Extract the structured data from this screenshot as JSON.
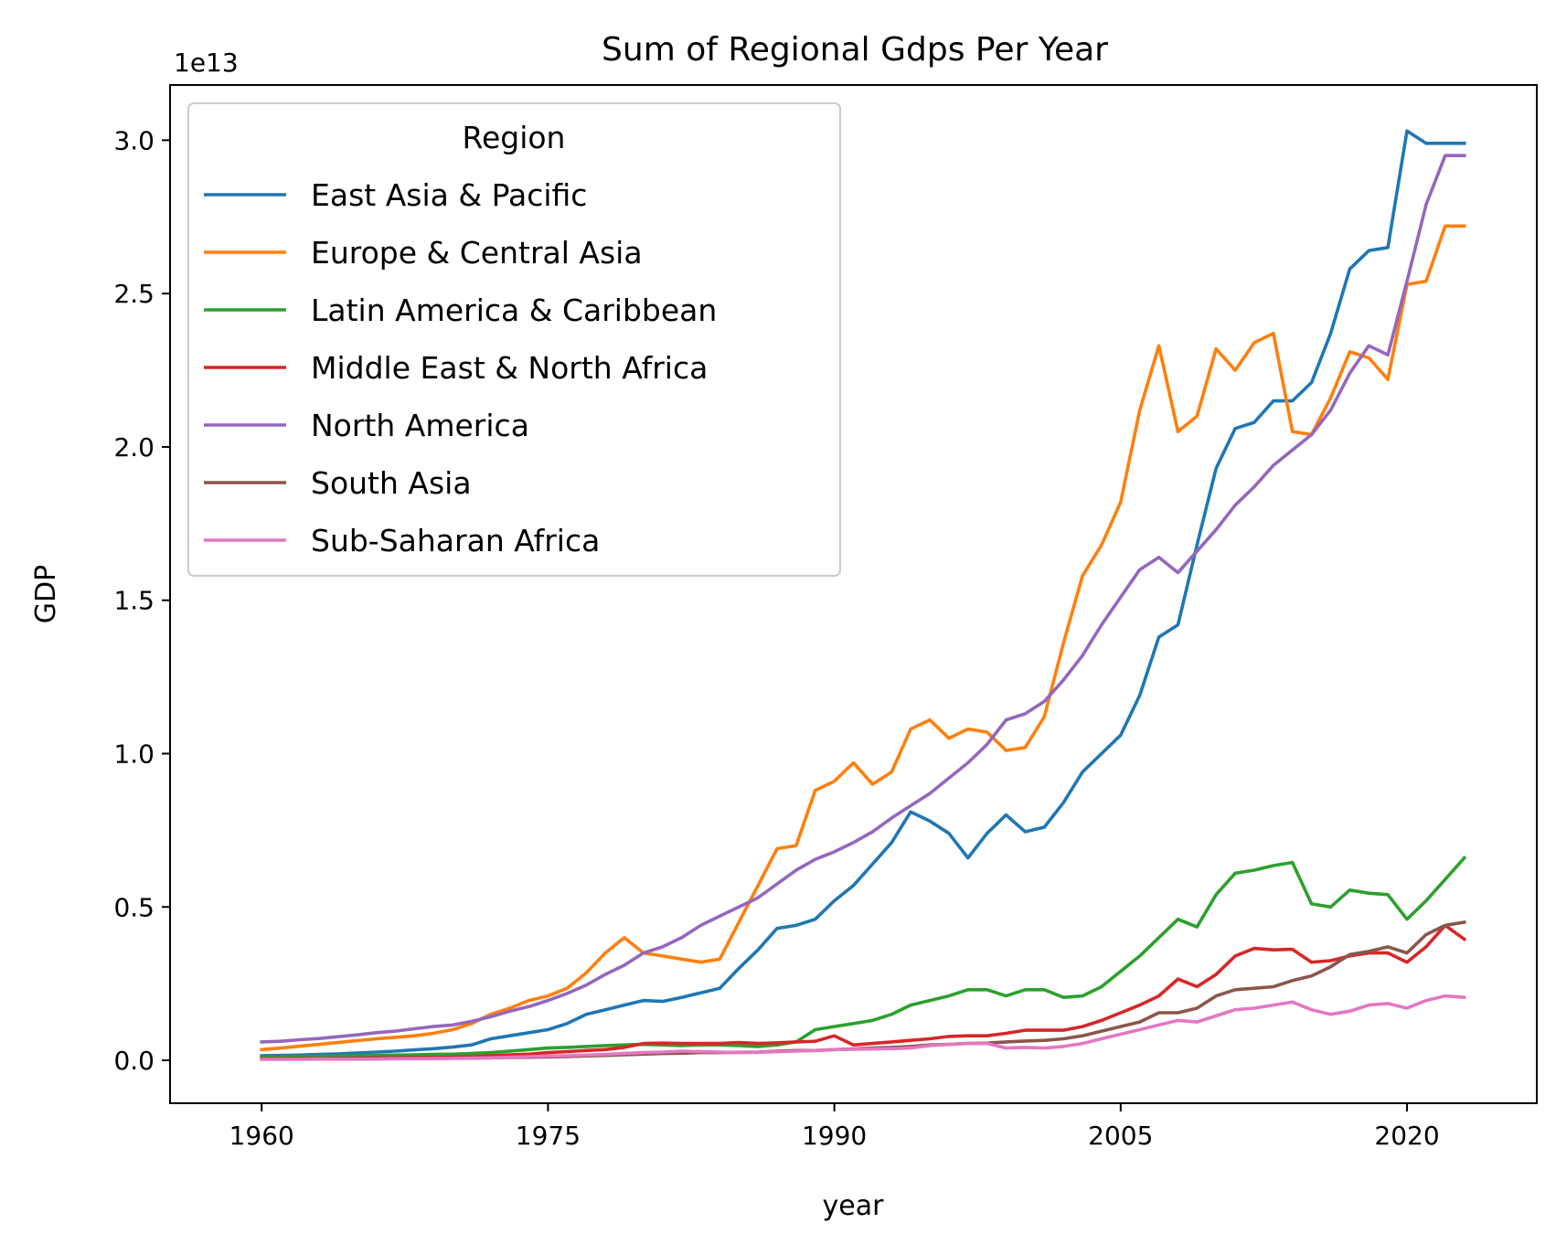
{
  "chart_data": {
    "type": "line",
    "title": "Sum of Regional Gdps Per Year",
    "xlabel": "year",
    "ylabel": "GDP",
    "y_multiplier_label": "1e13",
    "xlim": [
      1955.2,
      2026.8
    ],
    "ylim": [
      -0.14,
      3.18
    ],
    "x_ticks": [
      1960,
      1975,
      1990,
      2005,
      2020
    ],
    "x_tick_labels": [
      "1960",
      "1975",
      "1990",
      "2005",
      "2020"
    ],
    "y_ticks": [
      0.0,
      0.5,
      1.0,
      1.5,
      2.0,
      2.5,
      3.0
    ],
    "y_tick_labels": [
      "0.0",
      "0.5",
      "1.0",
      "1.5",
      "2.0",
      "2.5",
      "3.0"
    ],
    "grid": false,
    "legend": {
      "title": "Region",
      "placement": "top-left"
    },
    "x": [
      1960,
      1961,
      1962,
      1963,
      1964,
      1965,
      1966,
      1967,
      1968,
      1969,
      1970,
      1971,
      1972,
      1973,
      1974,
      1975,
      1976,
      1977,
      1978,
      1979,
      1980,
      1981,
      1982,
      1983,
      1984,
      1985,
      1986,
      1987,
      1988,
      1989,
      1990,
      1991,
      1992,
      1993,
      1994,
      1995,
      1996,
      1997,
      1998,
      1999,
      2000,
      2001,
      2002,
      2003,
      2004,
      2005,
      2006,
      2007,
      2008,
      2009,
      2010,
      2011,
      2012,
      2013,
      2014,
      2015,
      2016,
      2017,
      2018,
      2019,
      2020,
      2021,
      2022,
      2023
    ],
    "series": [
      {
        "name": "East Asia & Pacific",
        "color": "#1f77b4",
        "values": [
          0.015,
          0.016,
          0.017,
          0.019,
          0.021,
          0.024,
          0.027,
          0.03,
          0.034,
          0.038,
          0.043,
          0.05,
          0.07,
          0.08,
          0.09,
          0.1,
          0.12,
          0.15,
          0.165,
          0.18,
          0.195,
          0.192,
          0.205,
          0.22,
          0.235,
          0.3,
          0.36,
          0.43,
          0.44,
          0.46,
          0.52,
          0.57,
          0.64,
          0.71,
          0.81,
          0.78,
          0.74,
          0.66,
          0.74,
          0.8,
          0.745,
          0.76,
          0.84,
          0.94,
          1.0,
          1.06,
          1.19,
          1.38,
          1.42,
          1.68,
          1.93,
          2.06,
          2.08,
          2.15,
          2.15,
          2.21,
          2.37,
          2.58,
          2.64,
          2.65,
          3.03,
          2.99,
          2.99,
          2.99
        ]
      },
      {
        "name": "Europe & Central Asia",
        "color": "#ff7f0e",
        "values": [
          0.035,
          0.04,
          0.046,
          0.052,
          0.058,
          0.064,
          0.07,
          0.075,
          0.08,
          0.088,
          0.1,
          0.12,
          0.15,
          0.17,
          0.195,
          0.21,
          0.235,
          0.285,
          0.35,
          0.4,
          0.35,
          0.34,
          0.33,
          0.32,
          0.33,
          0.45,
          0.57,
          0.69,
          0.7,
          0.88,
          0.91,
          0.97,
          0.9,
          0.94,
          1.08,
          1.11,
          1.05,
          1.08,
          1.07,
          1.01,
          1.02,
          1.12,
          1.36,
          1.58,
          1.68,
          1.82,
          2.12,
          2.33,
          2.05,
          2.1,
          2.32,
          2.25,
          2.34,
          2.37,
          2.05,
          2.04,
          2.16,
          2.31,
          2.29,
          2.22,
          2.53,
          2.54,
          2.72,
          2.72
        ]
      },
      {
        "name": "Latin America & Caribbean",
        "color": "#2ca02c",
        "values": [
          0.01,
          0.011,
          0.012,
          0.013,
          0.014,
          0.015,
          0.016,
          0.017,
          0.018,
          0.019,
          0.02,
          0.022,
          0.025,
          0.03,
          0.035,
          0.04,
          0.042,
          0.045,
          0.048,
          0.05,
          0.052,
          0.05,
          0.048,
          0.05,
          0.05,
          0.048,
          0.045,
          0.05,
          0.06,
          0.1,
          0.11,
          0.12,
          0.13,
          0.15,
          0.18,
          0.195,
          0.21,
          0.23,
          0.23,
          0.21,
          0.23,
          0.23,
          0.205,
          0.21,
          0.24,
          0.29,
          0.34,
          0.4,
          0.46,
          0.435,
          0.54,
          0.61,
          0.62,
          0.635,
          0.645,
          0.51,
          0.5,
          0.555,
          0.545,
          0.54,
          0.46,
          0.52,
          0.59,
          0.66
        ]
      },
      {
        "name": "Middle East & North Africa",
        "color": "#d62728",
        "values": [
          0.005,
          0.005,
          0.006,
          0.006,
          0.007,
          0.007,
          0.008,
          0.008,
          0.009,
          0.009,
          0.01,
          0.012,
          0.015,
          0.018,
          0.02,
          0.025,
          0.028,
          0.032,
          0.035,
          0.042,
          0.055,
          0.056,
          0.055,
          0.055,
          0.055,
          0.058,
          0.055,
          0.057,
          0.06,
          0.062,
          0.08,
          0.05,
          0.055,
          0.06,
          0.065,
          0.07,
          0.078,
          0.08,
          0.08,
          0.088,
          0.098,
          0.098,
          0.098,
          0.11,
          0.13,
          0.155,
          0.18,
          0.21,
          0.265,
          0.24,
          0.28,
          0.34,
          0.365,
          0.36,
          0.362,
          0.32,
          0.325,
          0.34,
          0.35,
          0.35,
          0.32,
          0.37,
          0.44,
          0.395
        ]
      },
      {
        "name": "North America",
        "color": "#9467bd",
        "values": [
          0.06,
          0.062,
          0.067,
          0.071,
          0.077,
          0.083,
          0.09,
          0.095,
          0.103,
          0.11,
          0.115,
          0.127,
          0.142,
          0.16,
          0.175,
          0.195,
          0.218,
          0.245,
          0.28,
          0.31,
          0.35,
          0.37,
          0.4,
          0.44,
          0.47,
          0.5,
          0.53,
          0.575,
          0.62,
          0.655,
          0.68,
          0.71,
          0.745,
          0.79,
          0.83,
          0.87,
          0.92,
          0.97,
          1.03,
          1.11,
          1.13,
          1.17,
          1.24,
          1.32,
          1.42,
          1.51,
          1.6,
          1.64,
          1.59,
          1.66,
          1.73,
          1.81,
          1.87,
          1.94,
          1.99,
          2.04,
          2.12,
          2.24,
          2.33,
          2.3,
          2.54,
          2.79,
          2.95,
          2.95
        ]
      },
      {
        "name": "South Asia",
        "color": "#8c564b",
        "values": [
          0.004,
          0.004,
          0.004,
          0.005,
          0.005,
          0.005,
          0.005,
          0.006,
          0.006,
          0.006,
          0.007,
          0.007,
          0.008,
          0.009,
          0.01,
          0.011,
          0.012,
          0.014,
          0.016,
          0.018,
          0.02,
          0.022,
          0.023,
          0.025,
          0.025,
          0.026,
          0.027,
          0.03,
          0.032,
          0.032,
          0.035,
          0.037,
          0.04,
          0.042,
          0.045,
          0.05,
          0.052,
          0.055,
          0.056,
          0.06,
          0.063,
          0.065,
          0.07,
          0.08,
          0.095,
          0.11,
          0.125,
          0.155,
          0.155,
          0.17,
          0.21,
          0.23,
          0.235,
          0.24,
          0.26,
          0.275,
          0.305,
          0.345,
          0.355,
          0.37,
          0.35,
          0.41,
          0.44,
          0.45
        ]
      },
      {
        "name": "Sub-Saharan Africa",
        "color": "#e377c2",
        "values": [
          0.003,
          0.003,
          0.003,
          0.004,
          0.004,
          0.004,
          0.004,
          0.005,
          0.005,
          0.005,
          0.006,
          0.007,
          0.008,
          0.01,
          0.012,
          0.014,
          0.015,
          0.017,
          0.019,
          0.022,
          0.025,
          0.027,
          0.03,
          0.028,
          0.027,
          0.025,
          0.026,
          0.028,
          0.03,
          0.032,
          0.035,
          0.036,
          0.037,
          0.038,
          0.04,
          0.048,
          0.052,
          0.055,
          0.055,
          0.04,
          0.042,
          0.04,
          0.045,
          0.055,
          0.07,
          0.085,
          0.1,
          0.115,
          0.13,
          0.125,
          0.145,
          0.165,
          0.17,
          0.18,
          0.19,
          0.165,
          0.15,
          0.16,
          0.18,
          0.185,
          0.17,
          0.195,
          0.21,
          0.205
        ]
      }
    ]
  }
}
